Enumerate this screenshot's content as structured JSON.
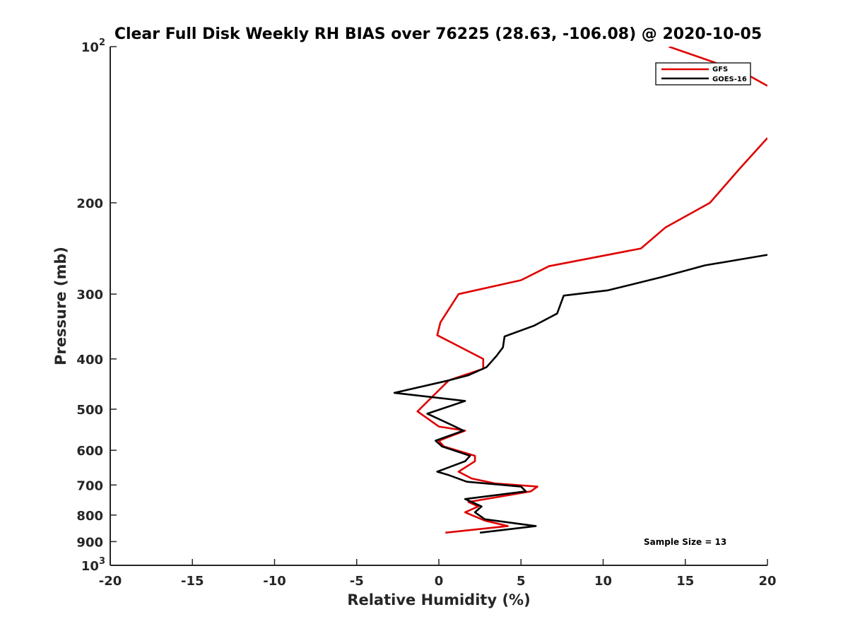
{
  "chart_data": {
    "type": "line",
    "title": "Clear Full Disk Weekly RH BIAS over 76225 (28.63, -106.08) @ 2020-10-05",
    "xlabel": "Relative Humidity (%)",
    "ylabel": "Pressure (mb)",
    "xlim": [
      -20,
      20
    ],
    "ylim": [
      100,
      1000
    ],
    "y_scale": "log",
    "y_reversed": true,
    "grid": false,
    "legend_position": "top-right",
    "x_ticks": [
      "-20",
      "-15",
      "-10",
      "-5",
      "0",
      "5",
      "10",
      "15",
      "20"
    ],
    "y_ticks": [
      {
        "value": 100,
        "label": "10",
        "sup": "2"
      },
      {
        "value": 200,
        "label": "200"
      },
      {
        "value": 300,
        "label": "300"
      },
      {
        "value": 400,
        "label": "400"
      },
      {
        "value": 500,
        "label": "500"
      },
      {
        "value": 600,
        "label": "600"
      },
      {
        "value": 700,
        "label": "700"
      },
      {
        "value": 800,
        "label": "800"
      },
      {
        "value": 900,
        "label": "900"
      },
      {
        "value": 1000,
        "label": "10",
        "sup": "3"
      }
    ],
    "annotation": "Sample Size = 13",
    "series": [
      {
        "name": "GFS",
        "color": "#e00000",
        "segments": [
          [
            [
              14.0,
              100
            ],
            [
              18.5,
              112
            ],
            [
              20.0,
              119
            ]
          ],
          [
            [
              20.0,
              150
            ],
            [
              18.3,
              172
            ],
            [
              16.5,
              200
            ],
            [
              13.8,
              223
            ],
            [
              12.3,
              245
            ],
            [
              6.7,
              265
            ],
            [
              5.0,
              282
            ],
            [
              1.2,
              300
            ],
            [
              0.1,
              340
            ],
            [
              -0.1,
              360
            ],
            [
              2.7,
              400
            ],
            [
              2.7,
              418
            ],
            [
              0.6,
              440
            ],
            [
              -1.3,
              505
            ],
            [
              0.0,
              540
            ],
            [
              1.6,
              550
            ],
            [
              0.0,
              575
            ],
            [
              0.3,
              590
            ],
            [
              2.2,
              615
            ],
            [
              2.2,
              630
            ],
            [
              1.2,
              660
            ],
            [
              2.0,
              680
            ],
            [
              3.4,
              695
            ],
            [
              6.0,
              705
            ],
            [
              5.6,
              720
            ],
            [
              1.8,
              755
            ],
            [
              2.4,
              770
            ],
            [
              1.6,
              790
            ],
            [
              2.0,
              800
            ],
            [
              2.8,
              820
            ],
            [
              4.2,
              840
            ],
            [
              0.4,
              865
            ]
          ]
        ]
      },
      {
        "name": "GOES-16",
        "color": "#000000",
        "segments": [
          [
            [
              20.0,
              252
            ],
            [
              16.2,
              264
            ],
            [
              13.6,
              278
            ],
            [
              10.3,
              295
            ],
            [
              7.6,
              302
            ],
            [
              7.2,
              327
            ],
            [
              5.8,
              345
            ],
            [
              4.0,
              362
            ],
            [
              3.9,
              380
            ],
            [
              3.5,
              395
            ],
            [
              2.9,
              415
            ],
            [
              1.8,
              430
            ],
            [
              0.6,
              440
            ],
            [
              -2.7,
              465
            ],
            [
              1.6,
              482
            ],
            [
              -0.7,
              510
            ],
            [
              0.7,
              535
            ],
            [
              1.5,
              550
            ],
            [
              -0.2,
              575
            ],
            [
              0.2,
              590
            ],
            [
              1.9,
              615
            ],
            [
              1.6,
              630
            ],
            [
              -0.1,
              660
            ],
            [
              0.6,
              670
            ],
            [
              1.7,
              690
            ],
            [
              5.0,
              705
            ],
            [
              5.3,
              720
            ],
            [
              1.6,
              745
            ],
            [
              2.6,
              770
            ],
            [
              2.2,
              790
            ],
            [
              2.8,
              815
            ],
            [
              5.9,
              840
            ],
            [
              2.5,
              865
            ]
          ]
        ]
      }
    ]
  }
}
